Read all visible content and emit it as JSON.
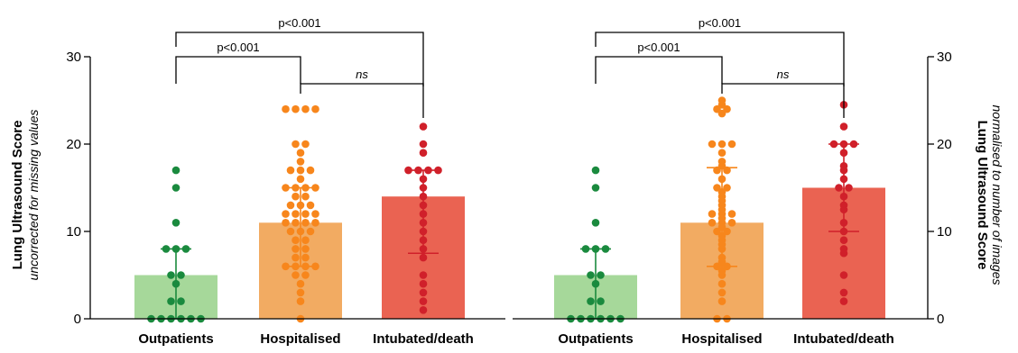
{
  "colors": {
    "outpatients_bar": "#a6d89a",
    "outpatients_dot": "#1a8a3e",
    "hospitalised_bar": "#f2ab62",
    "hospitalised_dot": "#f7861c",
    "intubated_bar": "#ea6352",
    "intubated_dot": "#d0202a"
  },
  "chart_data": [
    {
      "type": "bar",
      "ylabel": "Lung Ultrasound Score",
      "ylabel_sub": "uncorrected for missing values",
      "ylim": [
        0,
        30
      ],
      "yticks": [
        "0",
        "10",
        "20",
        "30"
      ],
      "axis_side": "left",
      "categories": [
        "Outpatients",
        "Hospitalised",
        "Intubated/death"
      ],
      "series": [
        {
          "values": [
            5,
            11,
            14
          ],
          "error_low": [
            0,
            6,
            7.5
          ],
          "error_high": [
            8,
            15,
            17
          ]
        }
      ],
      "points": [
        [
          17,
          15,
          11,
          8,
          8,
          8,
          5,
          5,
          4,
          2,
          2,
          0,
          0,
          0,
          0,
          0,
          0
        ],
        [
          24,
          24,
          24,
          24,
          20,
          20,
          19,
          18,
          17,
          17,
          17,
          16,
          15,
          15,
          15,
          15,
          14,
          14,
          13,
          13,
          13,
          12,
          12,
          12,
          12,
          11,
          11,
          11,
          11,
          10,
          10,
          10,
          9,
          9,
          8,
          8,
          7,
          7,
          6,
          6,
          6,
          6,
          5,
          5,
          4,
          3,
          2,
          0
        ],
        [
          22,
          20,
          19,
          17,
          17,
          17,
          17,
          16,
          15,
          14,
          13,
          12,
          11,
          10,
          9,
          8,
          7,
          5,
          4,
          3,
          2,
          1
        ]
      ],
      "comparisons": [
        {
          "from": 0,
          "to": 2,
          "label": "p<0.001"
        },
        {
          "from": 0,
          "to": 1,
          "label": "p<0.001"
        },
        {
          "from": 1,
          "to": 2,
          "label": "ns"
        }
      ]
    },
    {
      "type": "bar",
      "ylabel": "Lung Ultrasound Score",
      "ylabel_sub": "normalised to number of images",
      "ylim": [
        0,
        30
      ],
      "yticks": [
        "0",
        "10",
        "20",
        "30"
      ],
      "axis_side": "right",
      "categories": [
        "Outpatients",
        "Hospitalised",
        "Intubated/death"
      ],
      "series": [
        {
          "values": [
            5,
            11,
            15
          ],
          "error_low": [
            0,
            6,
            10
          ],
          "error_high": [
            8,
            17.3,
            20
          ]
        }
      ],
      "points": [
        [
          17,
          15,
          11,
          8,
          8,
          8,
          5,
          5,
          4,
          2,
          2,
          0,
          0,
          0,
          0,
          0,
          0
        ],
        [
          25,
          24.5,
          24,
          24,
          23.5,
          20,
          20,
          20,
          19,
          18,
          17.5,
          17,
          17,
          16,
          15,
          15,
          14.5,
          14,
          13.5,
          13,
          12.5,
          12,
          12,
          12,
          11.5,
          11,
          11,
          11,
          10.5,
          10,
          10,
          9.5,
          9,
          8.5,
          8,
          7,
          6.5,
          6,
          6,
          5.5,
          5,
          4,
          3,
          2,
          0,
          0
        ],
        [
          24.5,
          22,
          20,
          20,
          20,
          19,
          17.5,
          17,
          16,
          15,
          15,
          14,
          13,
          12.5,
          11,
          10,
          9,
          8,
          7.5,
          5,
          3,
          2
        ]
      ],
      "comparisons": [
        {
          "from": 0,
          "to": 2,
          "label": "p<0.001"
        },
        {
          "from": 0,
          "to": 1,
          "label": "p<0.001"
        },
        {
          "from": 1,
          "to": 2,
          "label": "ns"
        }
      ]
    }
  ]
}
